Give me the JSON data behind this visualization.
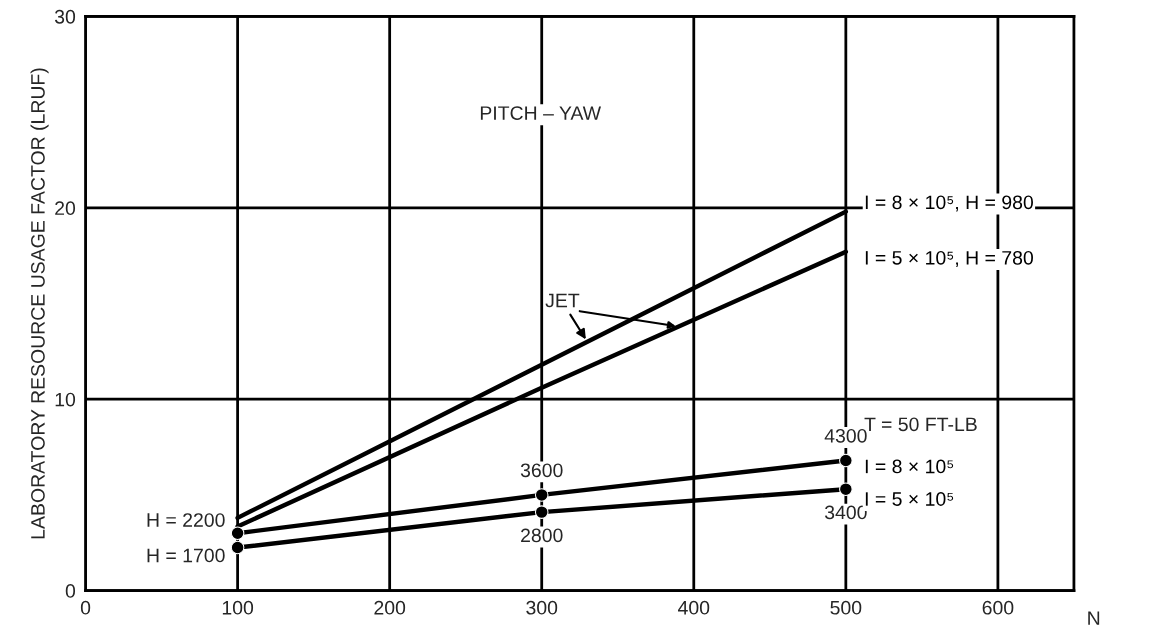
{
  "chart_data": {
    "type": "line",
    "ylabel": "LABORATORY RESOURCE USAGE FACTOR (LRUF)",
    "xlabel": "N",
    "x": [
      100,
      300,
      500
    ],
    "series": [
      {
        "name": "I = 8 × 10⁵, H = 980",
        "color": "#000000",
        "values": [
          3.8,
          11.8,
          19.8
        ],
        "marker": "none"
      },
      {
        "name": "I = 5 × 10⁵, H = 780",
        "color": "#000000",
        "values": [
          3.35,
          10.6,
          17.7
        ],
        "marker": "none"
      },
      {
        "name": "I = 8 × 10⁵",
        "color": "#000000",
        "values": [
          3.0,
          5.0,
          6.8
        ],
        "marker": "circle"
      },
      {
        "name": "I = 5 × 10⁵",
        "color": "#000000",
        "values": [
          2.25,
          4.1,
          5.3
        ],
        "marker": "circle"
      }
    ],
    "xlim": [
      0,
      650
    ],
    "ylim": [
      0,
      30
    ],
    "xticks": [
      0,
      100,
      200,
      300,
      400,
      500,
      600
    ],
    "yticks": [
      0,
      10,
      20,
      30
    ],
    "grid": true,
    "line_style": "solid",
    "annotations": [
      "PITCH – YAW",
      {
        "text": "JET",
        "x": 330,
        "y": 13.0
      },
      "T = 50 FT-LB",
      {
        "text": "H = 2200",
        "x": 100,
        "y": 3.0
      },
      {
        "text": "H = 1700",
        "x": 100,
        "y": 2.25
      },
      {
        "text": "3600",
        "x": 300,
        "y": 5.0
      },
      {
        "text": "2800",
        "x": 300,
        "y": 4.1
      },
      {
        "text": "4300",
        "x": 500,
        "y": 6.8
      },
      {
        "text": "3400",
        "x": 500,
        "y": 5.3
      }
    ]
  }
}
